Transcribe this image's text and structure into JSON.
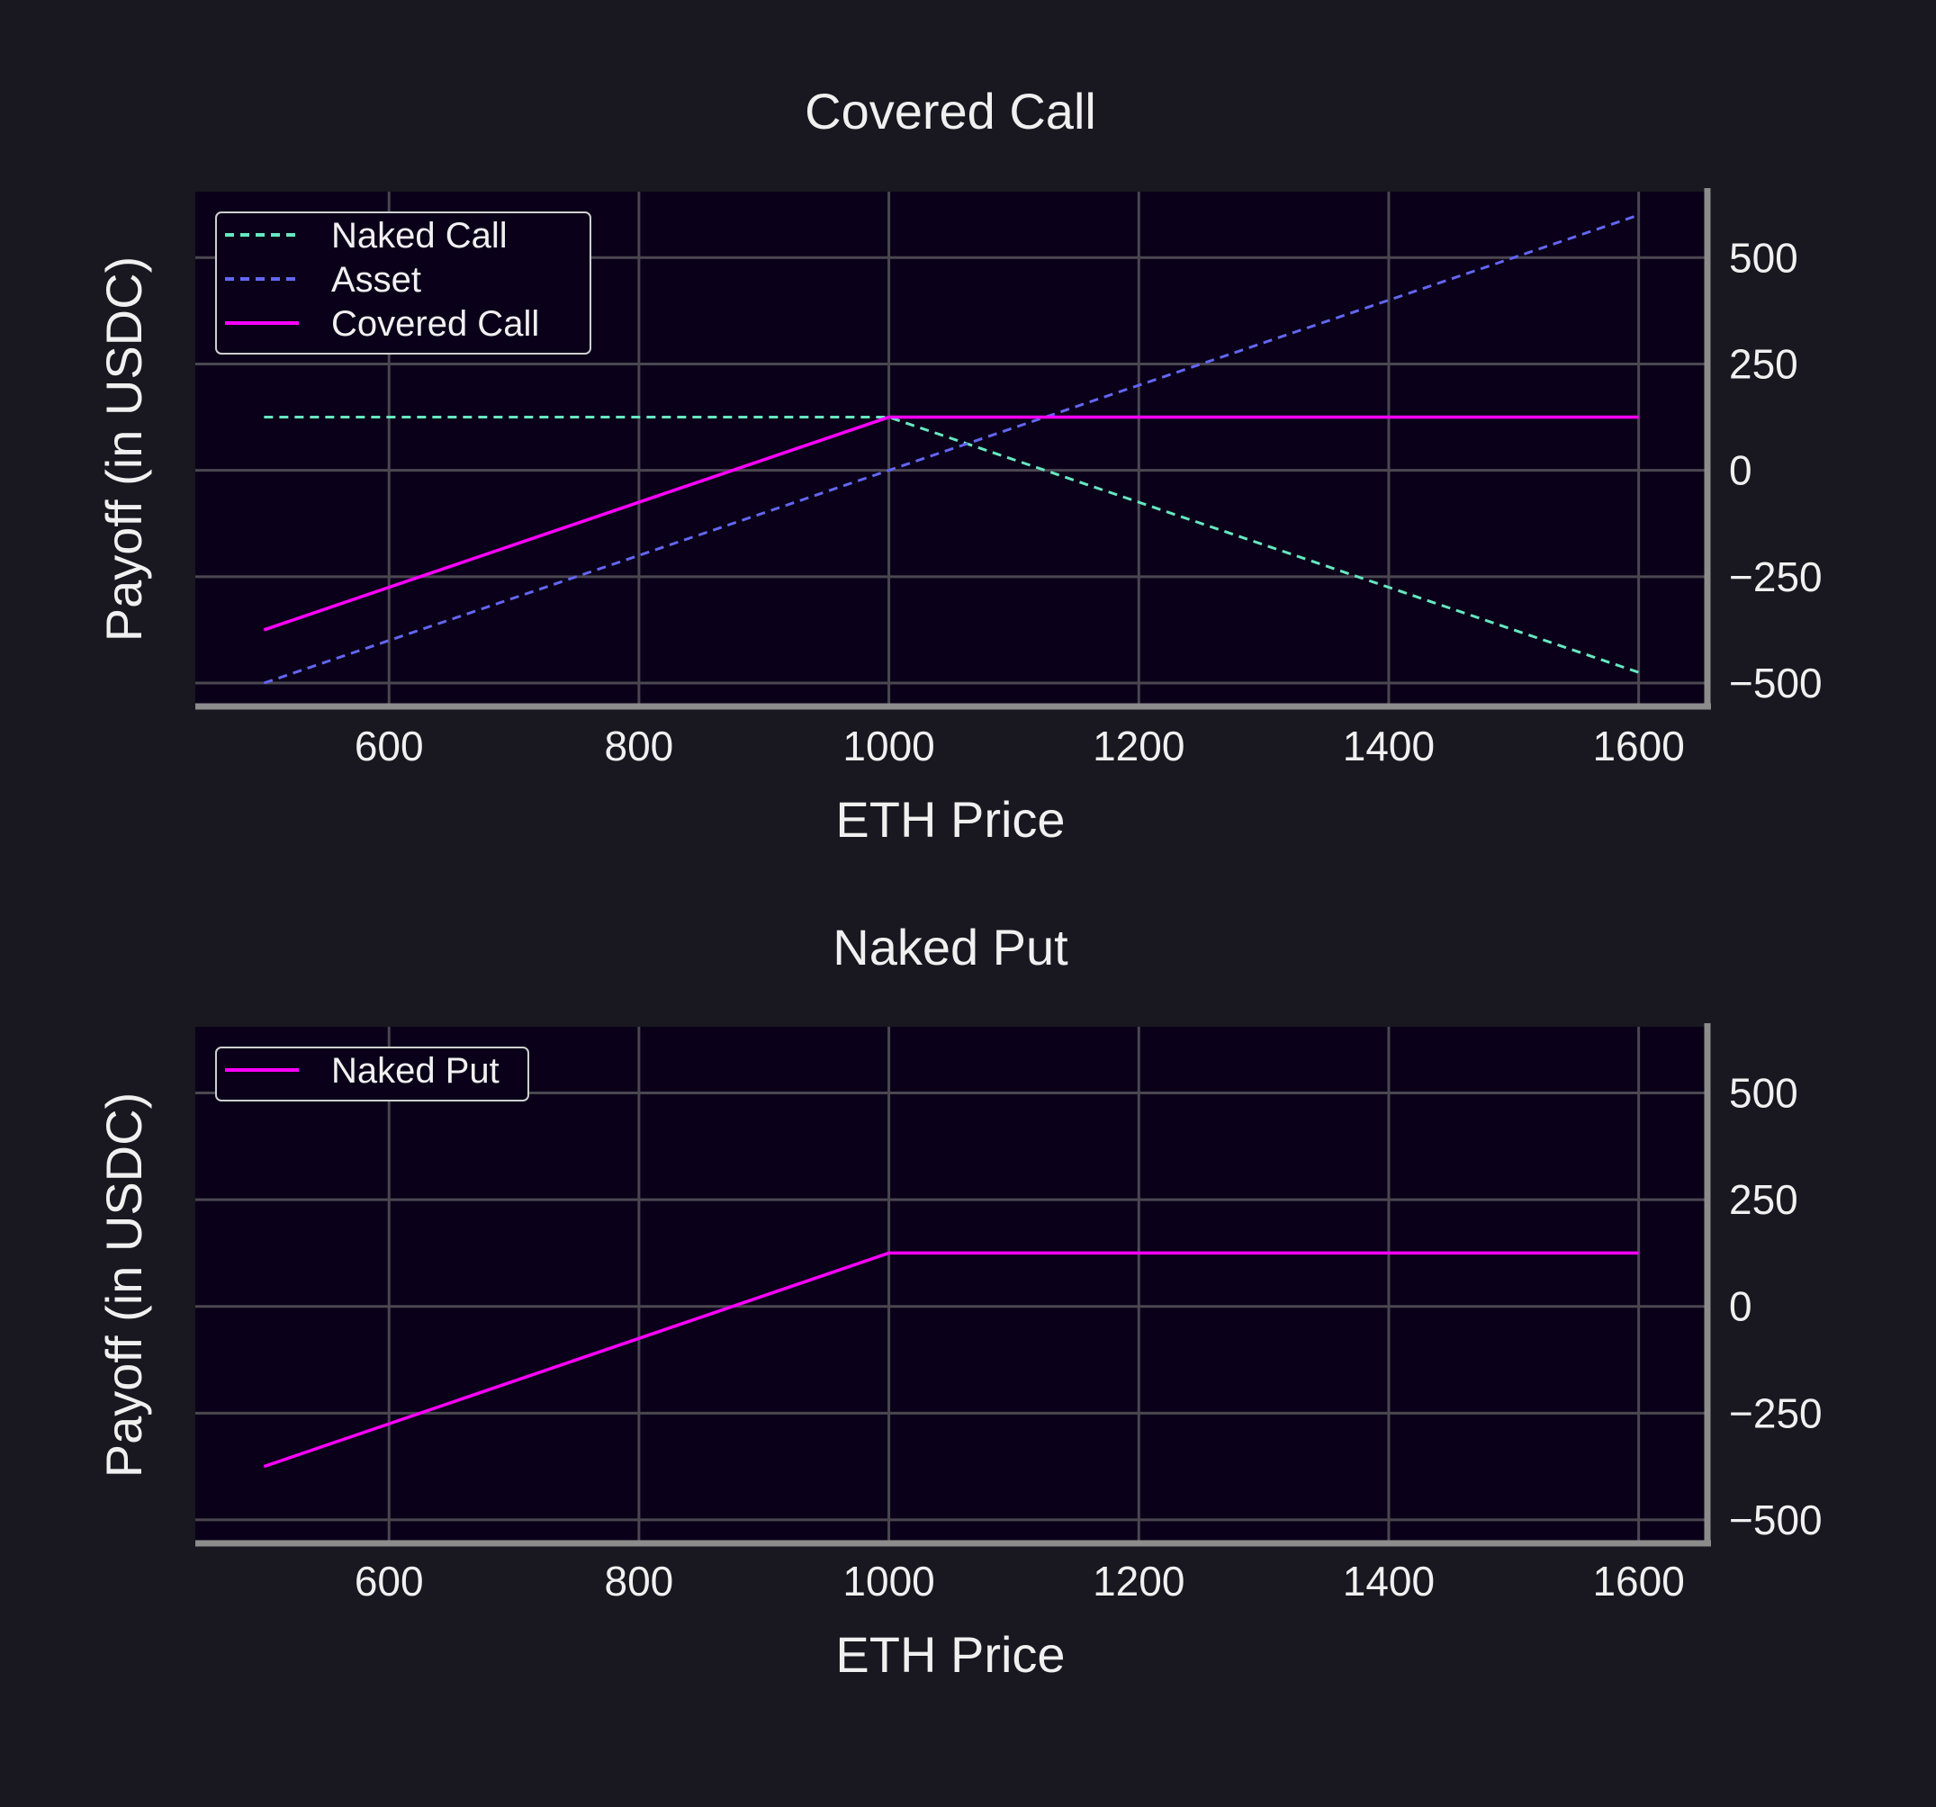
{
  "colors": {
    "figure_bg": "#19171f",
    "axes_bg": "#0a0019",
    "grid": "#4a4750",
    "spine": "#8c8c8c",
    "naked_call": "#66e8c0",
    "asset": "#6366f1",
    "magenta": "#ff00ff"
  },
  "chart_data": [
    {
      "type": "line",
      "title": "Covered Call",
      "xlabel": "ETH Price",
      "ylabel": "Payoff (in USDC)",
      "xlim": [
        445,
        1655
      ],
      "ylim": [
        -555,
        655
      ],
      "xticks": [
        600,
        800,
        1000,
        1200,
        1400,
        1600
      ],
      "yticks": [
        -500,
        -250,
        0,
        250,
        500
      ],
      "ytick_labels": [
        "−500",
        "−250",
        "0",
        "250",
        "500"
      ],
      "grid": true,
      "yaxis_position": "right",
      "legend": "top-left",
      "series": [
        {
          "name": "Naked Call",
          "style": "dashed",
          "color": "#66e8c0",
          "x": [
            500,
            1000,
            1600
          ],
          "y": [
            125,
            125,
            -475
          ]
        },
        {
          "name": "Asset",
          "style": "dashed",
          "color": "#6366f1",
          "x": [
            500,
            1600
          ],
          "y": [
            -500,
            600
          ]
        },
        {
          "name": "Covered Call",
          "style": "solid",
          "color": "#ff00ff",
          "x": [
            500,
            1000,
            1600
          ],
          "y": [
            -375,
            125,
            125
          ]
        }
      ]
    },
    {
      "type": "line",
      "title": "Naked Put",
      "xlabel": "ETH Price",
      "ylabel": "Payoff (in USDC)",
      "xlim": [
        445,
        1655
      ],
      "ylim": [
        -555,
        655
      ],
      "xticks": [
        600,
        800,
        1000,
        1200,
        1400,
        1600
      ],
      "yticks": [
        -500,
        -250,
        0,
        250,
        500
      ],
      "ytick_labels": [
        "−500",
        "−250",
        "0",
        "250",
        "500"
      ],
      "grid": true,
      "yaxis_position": "right",
      "legend": "top-left",
      "series": [
        {
          "name": "Naked Put",
          "style": "solid",
          "color": "#ff00ff",
          "x": [
            500,
            1000,
            1600
          ],
          "y": [
            -375,
            125,
            125
          ]
        }
      ]
    }
  ]
}
